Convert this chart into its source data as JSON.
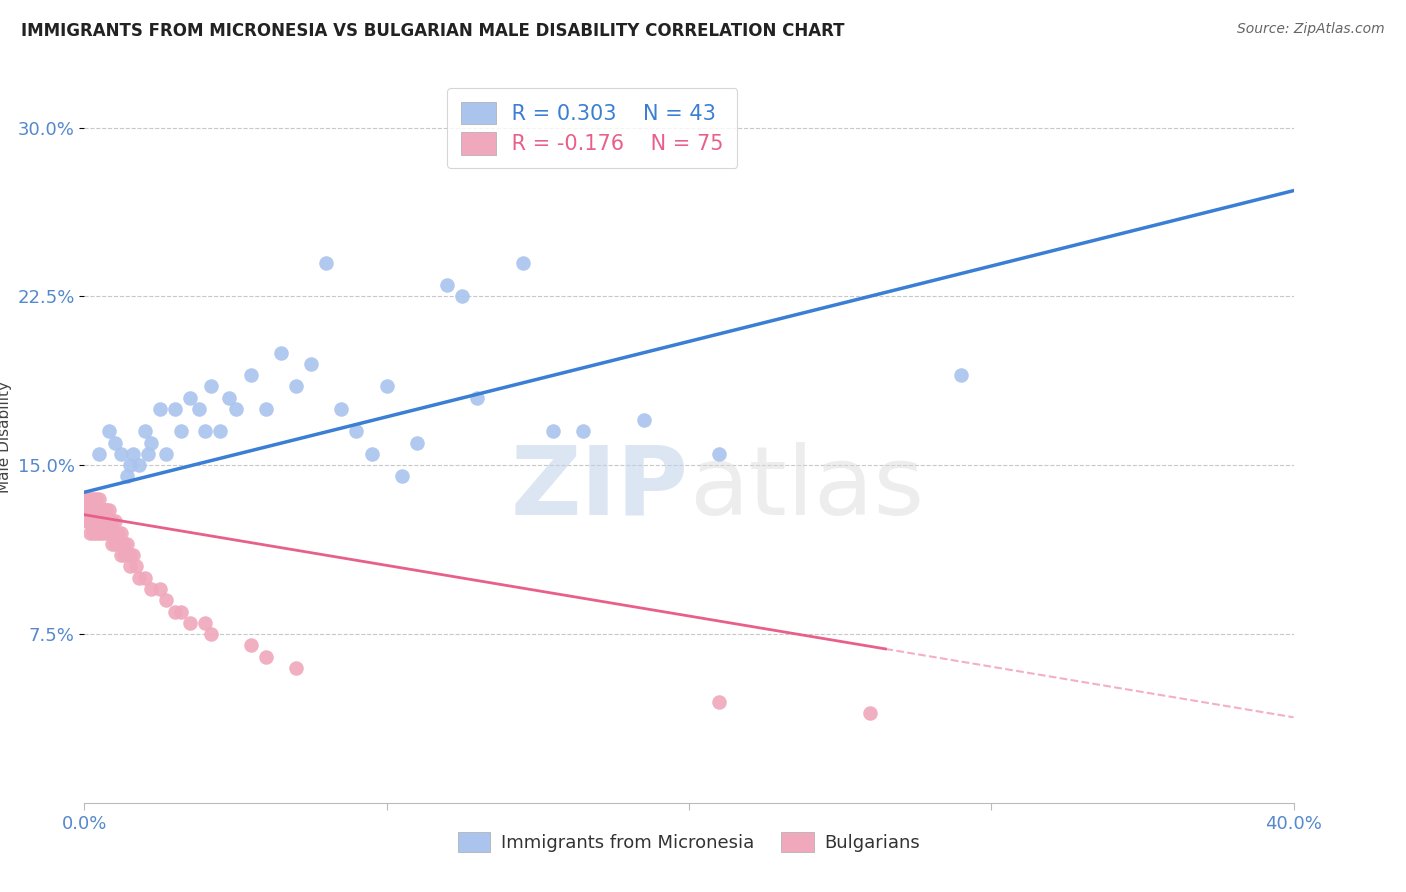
{
  "title": "IMMIGRANTS FROM MICRONESIA VS BULGARIAN MALE DISABILITY CORRELATION CHART",
  "source": "Source: ZipAtlas.com",
  "ylabel": "Male Disability",
  "xlim": [
    0.0,
    0.4
  ],
  "ylim": [
    0.0,
    0.325
  ],
  "ytick_positions": [
    0.075,
    0.15,
    0.225,
    0.3
  ],
  "ytick_labels": [
    "7.5%",
    "15.0%",
    "22.5%",
    "30.0%"
  ],
  "grid_color": "#c8c8c8",
  "background_color": "#ffffff",
  "series1_color": "#aac4ee",
  "series2_color": "#f0a8bc",
  "series1_label": "Immigrants from Micronesia",
  "series2_label": "Bulgarians",
  "legend_R1": "R = 0.303",
  "legend_N1": "N = 43",
  "legend_R2": "R = -0.176",
  "legend_N2": "N = 75",
  "trend1_color": "#3a7fd4",
  "trend2_color": "#e8608a",
  "watermark": "ZIPatlas",
  "trend1_x0": 0.0,
  "trend1_y0": 0.138,
  "trend1_x1": 0.4,
  "trend1_y1": 0.272,
  "trend2_x0": 0.0,
  "trend2_y0": 0.128,
  "trend2_x1": 0.4,
  "trend2_y1": 0.038,
  "trend2_solid_end": 0.265,
  "series1_x": [
    0.005,
    0.008,
    0.01,
    0.012,
    0.014,
    0.015,
    0.016,
    0.018,
    0.02,
    0.021,
    0.022,
    0.025,
    0.027,
    0.03,
    0.032,
    0.035,
    0.038,
    0.04,
    0.042,
    0.045,
    0.048,
    0.05,
    0.055,
    0.06,
    0.065,
    0.07,
    0.075,
    0.08,
    0.085,
    0.09,
    0.095,
    0.1,
    0.105,
    0.11,
    0.12,
    0.125,
    0.13,
    0.145,
    0.155,
    0.165,
    0.185,
    0.21,
    0.29
  ],
  "series1_y": [
    0.155,
    0.165,
    0.16,
    0.155,
    0.145,
    0.15,
    0.155,
    0.15,
    0.165,
    0.155,
    0.16,
    0.175,
    0.155,
    0.175,
    0.165,
    0.18,
    0.175,
    0.165,
    0.185,
    0.165,
    0.18,
    0.175,
    0.19,
    0.175,
    0.2,
    0.185,
    0.195,
    0.24,
    0.175,
    0.165,
    0.155,
    0.185,
    0.145,
    0.16,
    0.23,
    0.225,
    0.18,
    0.24,
    0.165,
    0.165,
    0.17,
    0.155,
    0.19
  ],
  "series2_x": [
    0.001,
    0.001,
    0.001,
    0.001,
    0.001,
    0.002,
    0.002,
    0.002,
    0.002,
    0.002,
    0.002,
    0.002,
    0.002,
    0.003,
    0.003,
    0.003,
    0.003,
    0.003,
    0.003,
    0.003,
    0.004,
    0.004,
    0.004,
    0.004,
    0.004,
    0.005,
    0.005,
    0.005,
    0.005,
    0.005,
    0.005,
    0.005,
    0.006,
    0.006,
    0.006,
    0.007,
    0.007,
    0.007,
    0.007,
    0.007,
    0.008,
    0.008,
    0.008,
    0.009,
    0.009,
    0.009,
    0.01,
    0.01,
    0.01,
    0.011,
    0.011,
    0.012,
    0.012,
    0.013,
    0.013,
    0.014,
    0.015,
    0.015,
    0.016,
    0.017,
    0.018,
    0.02,
    0.022,
    0.025,
    0.027,
    0.03,
    0.032,
    0.035,
    0.04,
    0.042,
    0.055,
    0.06,
    0.07,
    0.21,
    0.26
  ],
  "series2_y": [
    0.125,
    0.13,
    0.135,
    0.125,
    0.13,
    0.13,
    0.125,
    0.135,
    0.13,
    0.125,
    0.12,
    0.125,
    0.13,
    0.13,
    0.125,
    0.135,
    0.13,
    0.125,
    0.12,
    0.13,
    0.13,
    0.125,
    0.135,
    0.13,
    0.12,
    0.135,
    0.13,
    0.125,
    0.13,
    0.125,
    0.12,
    0.13,
    0.13,
    0.125,
    0.12,
    0.13,
    0.125,
    0.13,
    0.125,
    0.12,
    0.13,
    0.125,
    0.12,
    0.125,
    0.12,
    0.115,
    0.125,
    0.12,
    0.115,
    0.12,
    0.115,
    0.12,
    0.11,
    0.115,
    0.11,
    0.115,
    0.11,
    0.105,
    0.11,
    0.105,
    0.1,
    0.1,
    0.095,
    0.095,
    0.09,
    0.085,
    0.085,
    0.08,
    0.08,
    0.075,
    0.07,
    0.065,
    0.06,
    0.045,
    0.04
  ]
}
